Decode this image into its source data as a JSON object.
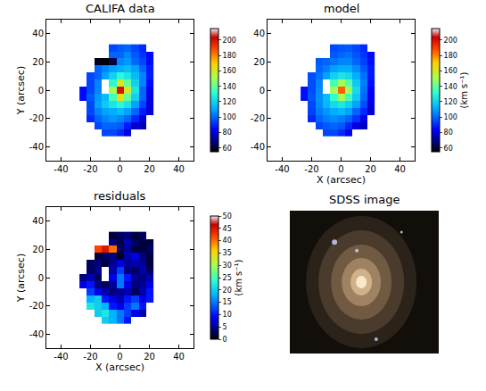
{
  "chart_data": [
    {
      "type": "heatmap",
      "title": "CALIFA data",
      "color": "jet",
      "x": [
        -25,
        -20,
        -15,
        -10,
        -5,
        0,
        5,
        10,
        15,
        20
      ],
      "y": [
        30,
        25,
        20,
        15,
        10,
        5,
        0,
        -5,
        -10,
        -15,
        -20,
        -25,
        -30
      ],
      "z": [
        [
          null,
          null,
          null,
          null,
          95,
          98,
          100,
          95,
          90,
          null
        ],
        [
          null,
          null,
          null,
          null,
          100,
          100,
          105,
          98,
          92,
          85
        ],
        [
          null,
          null,
          58,
          55,
          62,
          105,
          108,
          100,
          95,
          85
        ],
        [
          null,
          null,
          100,
          105,
          110,
          112,
          115,
          110,
          100,
          88
        ],
        [
          null,
          95,
          100,
          110,
          120,
          130,
          125,
          115,
          105,
          88
        ],
        [
          null,
          95,
          105,
          null,
          130,
          160,
          140,
          120,
          105,
          85
        ],
        [
          85,
          95,
          105,
          null,
          150,
          200,
          160,
          125,
          100,
          82
        ],
        [
          85,
          98,
          108,
          115,
          135,
          165,
          140,
          120,
          100,
          80
        ],
        [
          null,
          95,
          110,
          118,
          125,
          130,
          125,
          110,
          95,
          80
        ],
        [
          null,
          95,
          105,
          110,
          112,
          115,
          110,
          100,
          88,
          78
        ],
        [
          null,
          90,
          100,
          105,
          108,
          105,
          100,
          90,
          80,
          null
        ],
        [
          null,
          null,
          95,
          100,
          100,
          98,
          88,
          78,
          75,
          null
        ],
        [
          null,
          null,
          null,
          95,
          95,
          90,
          80,
          null,
          null,
          null
        ]
      ],
      "xlim": [
        -50,
        50
      ],
      "ylim": [
        -50,
        50
      ],
      "xticks": [
        -40,
        -20,
        0,
        20,
        40
      ],
      "yticks": [
        -40,
        -20,
        0,
        20,
        40
      ],
      "y_label": "Y (arcsec)",
      "colorbar": {
        "range": [
          55,
          215
        ],
        "ticks": [
          60,
          80,
          100,
          120,
          140,
          160,
          180,
          200
        ]
      }
    },
    {
      "type": "heatmap",
      "title": "model",
      "color": "jet",
      "x": [
        -25,
        -20,
        -15,
        -10,
        -5,
        0,
        5,
        10,
        15,
        20
      ],
      "y": [
        30,
        25,
        20,
        15,
        10,
        5,
        0,
        -5,
        -10,
        -15,
        -20,
        -25,
        -30
      ],
      "z": [
        [
          null,
          null,
          null,
          null,
          95,
          97,
          98,
          95,
          90,
          null
        ],
        [
          null,
          null,
          null,
          null,
          98,
          100,
          102,
          97,
          92,
          85
        ],
        [
          null,
          null,
          98,
          100,
          102,
          105,
          105,
          100,
          94,
          86
        ],
        [
          null,
          null,
          100,
          104,
          110,
          112,
          112,
          106,
          98,
          88
        ],
        [
          null,
          96,
          102,
          110,
          120,
          125,
          122,
          112,
          102,
          88
        ],
        [
          null,
          96,
          105,
          null,
          135,
          150,
          138,
          118,
          104,
          86
        ],
        [
          86,
          96,
          106,
          null,
          150,
          185,
          150,
          122,
          102,
          84
        ],
        [
          86,
          97,
          107,
          115,
          132,
          150,
          135,
          118,
          100,
          82
        ],
        [
          null,
          95,
          106,
          114,
          122,
          126,
          120,
          110,
          96,
          80
        ],
        [
          null,
          94,
          104,
          108,
          112,
          114,
          110,
          100,
          90,
          78
        ],
        [
          null,
          90,
          100,
          104,
          106,
          104,
          100,
          92,
          82,
          null
        ],
        [
          null,
          null,
          95,
          98,
          100,
          98,
          90,
          80,
          76,
          null
        ],
        [
          null,
          null,
          null,
          95,
          95,
          90,
          82,
          null,
          null,
          null
        ]
      ],
      "xlim": [
        -50,
        50
      ],
      "ylim": [
        -50,
        50
      ],
      "xticks": [
        -40,
        -20,
        0,
        20,
        40
      ],
      "yticks": [
        -40,
        -20,
        0,
        20,
        40
      ],
      "x_label": "X (arcsec)",
      "colorbar": {
        "range": [
          55,
          215
        ],
        "ticks": [
          60,
          80,
          100,
          120,
          140,
          160,
          180,
          200
        ],
        "label": "(km s⁻¹)"
      }
    },
    {
      "type": "heatmap",
      "title": "residuals",
      "color": "jet",
      "x": [
        -25,
        -20,
        -15,
        -10,
        -5,
        0,
        5,
        10,
        15,
        20
      ],
      "y": [
        30,
        25,
        20,
        15,
        10,
        5,
        0,
        -5,
        -10,
        -15,
        -20,
        -25,
        -30
      ],
      "z": [
        [
          null,
          null,
          null,
          null,
          2,
          3,
          4,
          2,
          3,
          null
        ],
        [
          null,
          null,
          null,
          null,
          4,
          2,
          6,
          3,
          2,
          2
        ],
        [
          null,
          null,
          42,
          45,
          40,
          3,
          5,
          2,
          2,
          3
        ],
        [
          null,
          null,
          2,
          3,
          4,
          1,
          6,
          8,
          4,
          2
        ],
        [
          null,
          3,
          4,
          2,
          5,
          8,
          5,
          6,
          5,
          2
        ],
        [
          null,
          3,
          5,
          null,
          6,
          12,
          4,
          3,
          6,
          3
        ],
        [
          4,
          6,
          3,
          null,
          8,
          15,
          10,
          5,
          4,
          6
        ],
        [
          8,
          10,
          4,
          3,
          5,
          15,
          8,
          4,
          5,
          8
        ],
        [
          null,
          12,
          8,
          6,
          4,
          5,
          6,
          3,
          6,
          10
        ],
        [
          null,
          18,
          20,
          10,
          8,
          6,
          10,
          12,
          8,
          10
        ],
        [
          null,
          22,
          20,
          18,
          10,
          8,
          12,
          15,
          10,
          null
        ],
        [
          null,
          null,
          20,
          22,
          18,
          15,
          12,
          8,
          6,
          null
        ],
        [
          null,
          null,
          null,
          20,
          18,
          15,
          10,
          null,
          null,
          null
        ]
      ],
      "xlim": [
        -50,
        50
      ],
      "ylim": [
        -50,
        50
      ],
      "xticks": [
        -40,
        -20,
        0,
        20,
        40
      ],
      "yticks": [
        -40,
        -20,
        0,
        20,
        40
      ],
      "x_label": "X (arcsec)",
      "y_label": "Y (arcsec)",
      "colorbar": {
        "range": [
          0,
          50
        ],
        "ticks": [
          0,
          5,
          10,
          15,
          20,
          25,
          30,
          35,
          40,
          45,
          50
        ],
        "label": "(km s⁻¹)"
      }
    },
    {
      "type": "image",
      "title": "SDSS image"
    }
  ]
}
